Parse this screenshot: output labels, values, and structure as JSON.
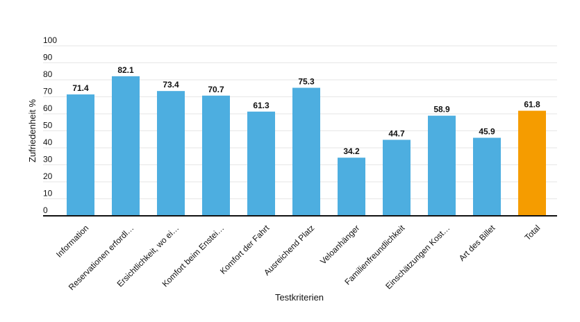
{
  "chart_data": {
    "type": "bar",
    "title": "",
    "xlabel": "Testkriterien",
    "ylabel": "Zufriedenheit %",
    "ylim": [
      0,
      100
    ],
    "yticks": [
      0,
      10,
      20,
      30,
      40,
      50,
      60,
      70,
      80,
      90,
      100
    ],
    "grid": true,
    "legend": "none",
    "categories": [
      "Information",
      "Reservationen erfordl…",
      "Ersichtlichkeit, wo ei…",
      "Komfort beim Enstei…",
      "Komfort der Fahrt",
      "Ausreichend Platz",
      "Veloanhänger",
      "Familienfreundlichkeit",
      "Einschätzungen Kost…",
      "Art des Billet",
      "Total"
    ],
    "values": [
      71.4,
      82.1,
      73.4,
      70.7,
      61.3,
      75.3,
      34.2,
      44.7,
      58.9,
      45.9,
      61.8
    ],
    "colors": [
      "#4daee0",
      "#4daee0",
      "#4daee0",
      "#4daee0",
      "#4daee0",
      "#4daee0",
      "#4daee0",
      "#4daee0",
      "#4daee0",
      "#4daee0",
      "#f59c00"
    ],
    "gridColor": "#e6e6e6",
    "axisColor": "#111111"
  }
}
